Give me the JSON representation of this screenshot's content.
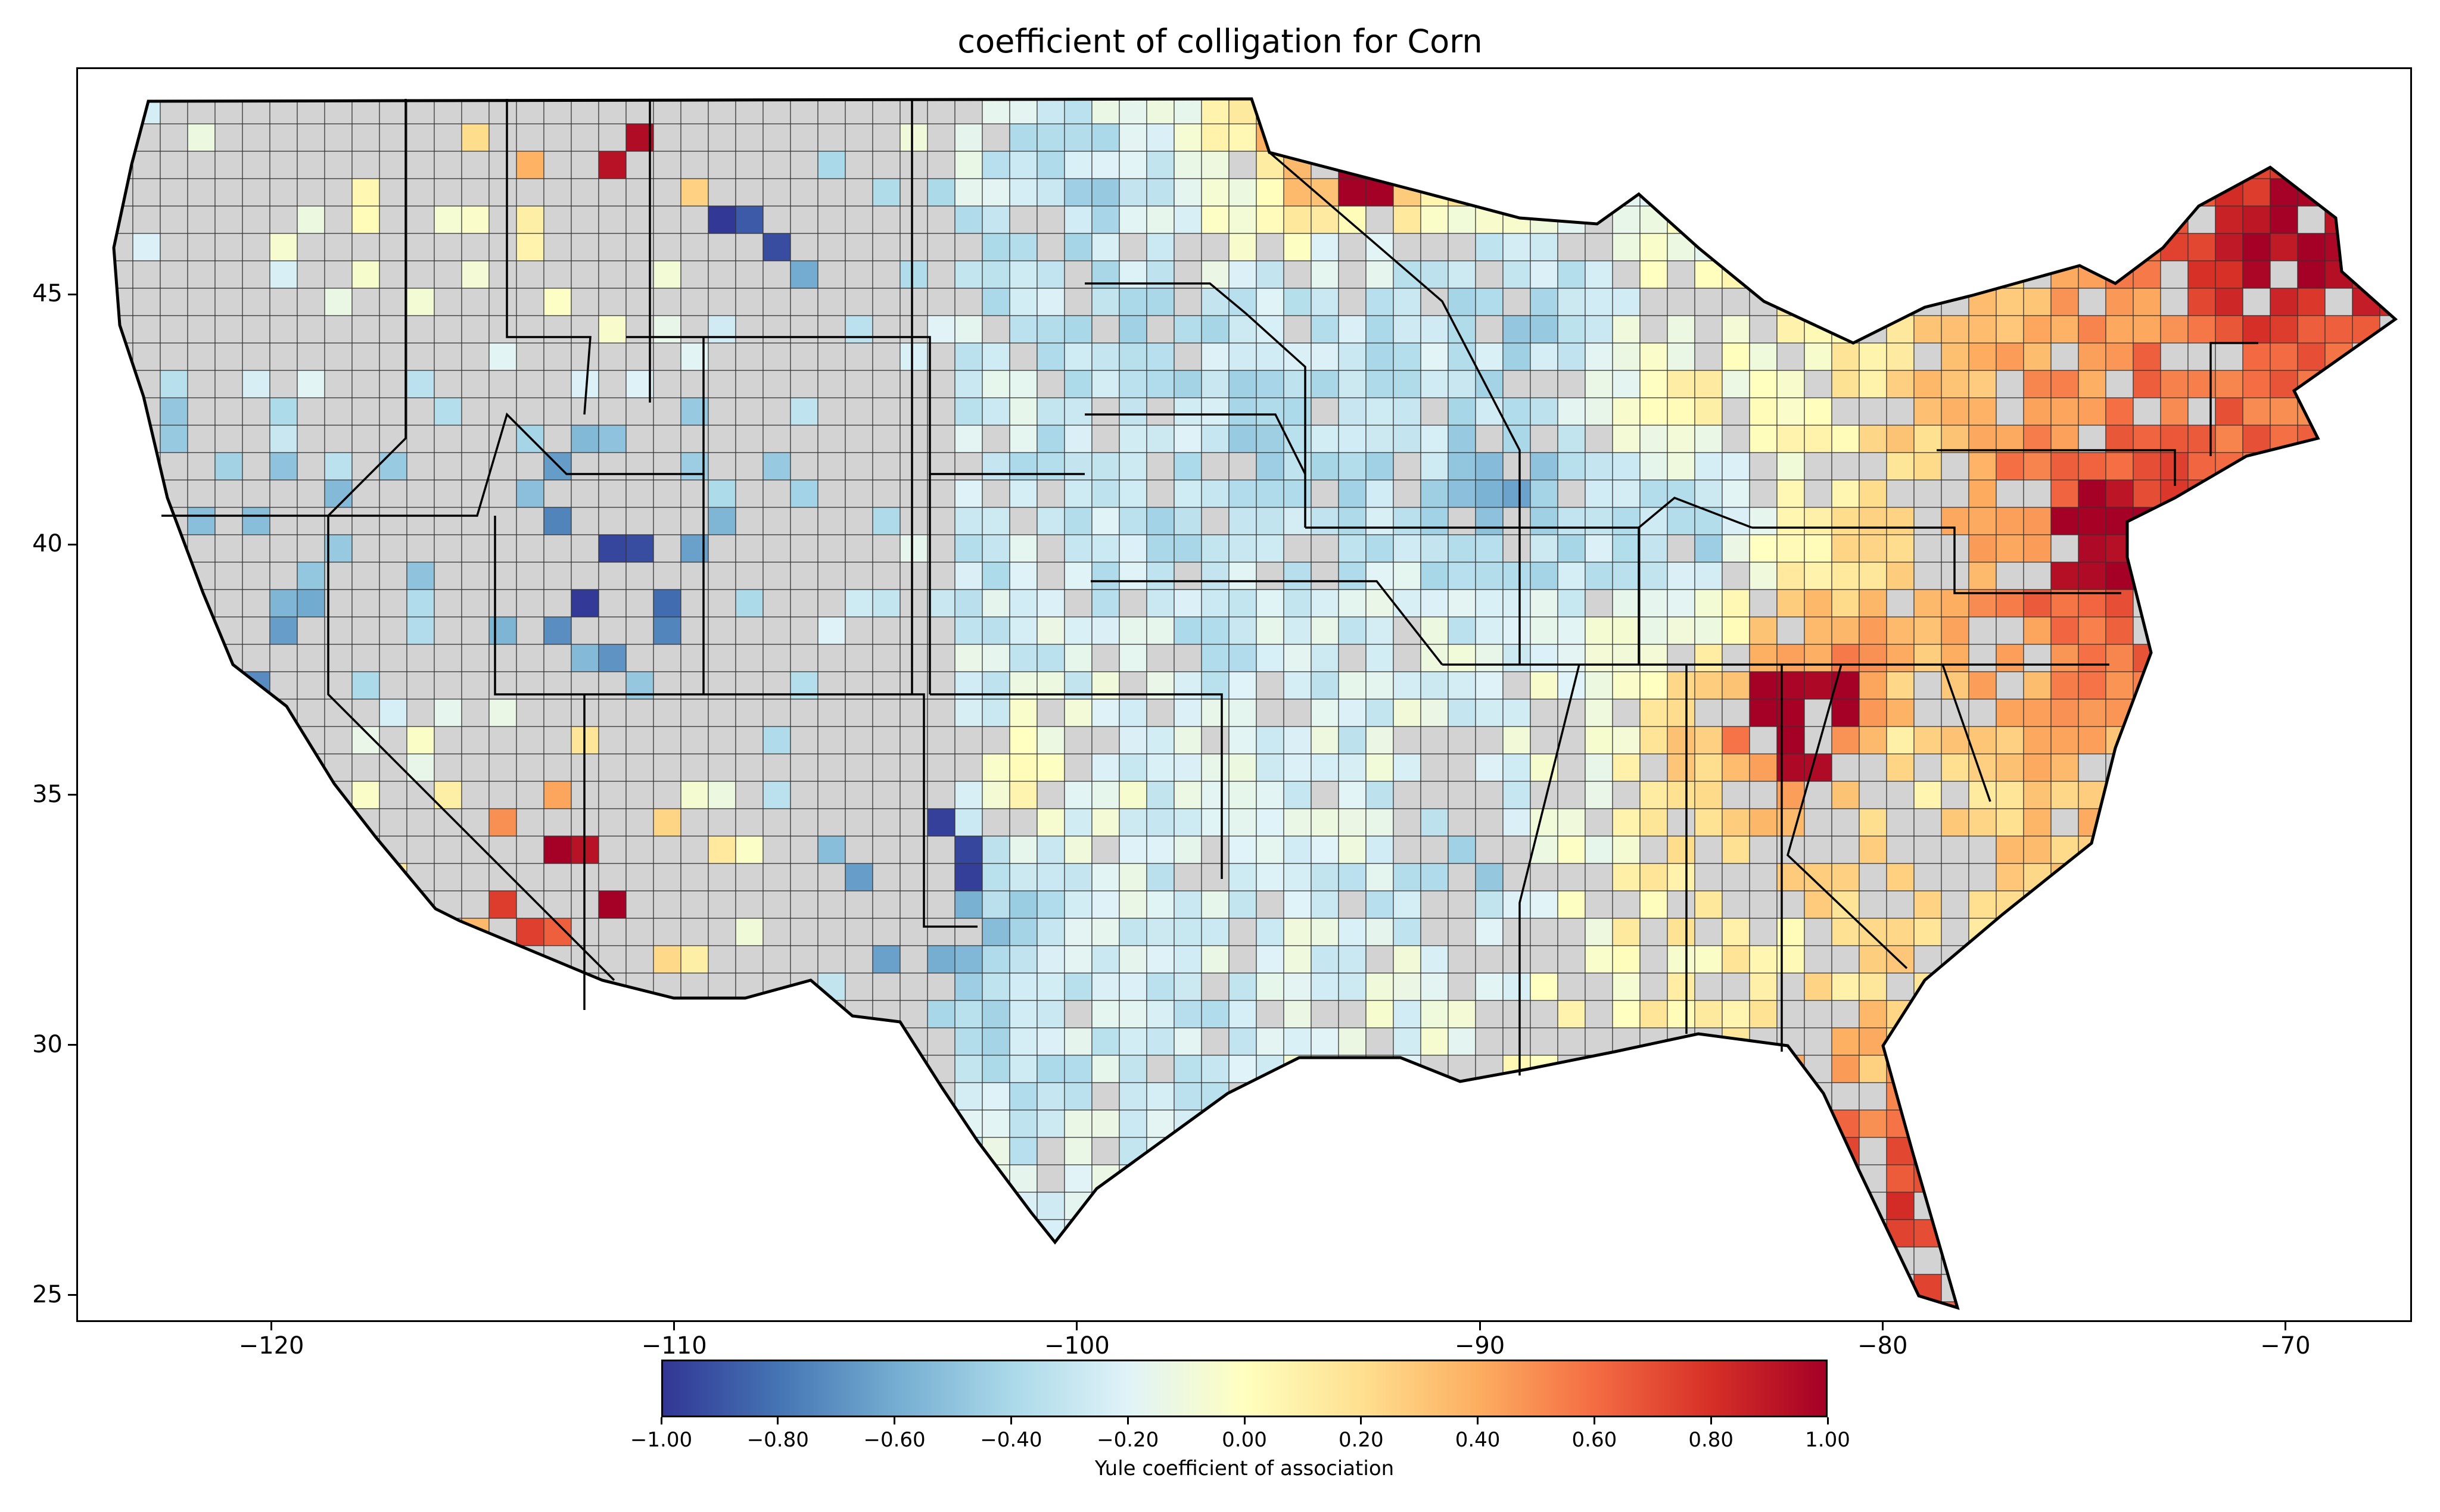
{
  "title": "coefficient of colligation for Corn",
  "chart_data": {
    "type": "choropleth",
    "region": "contiguous United States (counties)",
    "title": "coefficient of colligation for Corn",
    "xlim": [
      -124.8,
      -66.9
    ],
    "ylim": [
      24.5,
      49.5
    ],
    "x_ticks": [
      -120,
      -110,
      -100,
      -90,
      -80,
      -70
    ],
    "y_ticks": [
      25,
      30,
      35,
      40,
      45
    ],
    "x_tick_labels": [
      "−120",
      "−110",
      "−100",
      "−90",
      "−80",
      "−70"
    ],
    "y_tick_labels": [
      "25",
      "30",
      "35",
      "40",
      "45"
    ],
    "no_data_color": "#d3d3d3",
    "colormap": "RdYlBu_r",
    "colorbar": {
      "label": "Yule coefficient of association",
      "range": [
        -1.0,
        1.0
      ],
      "ticks": [
        -1.0,
        -0.8,
        -0.6,
        -0.4,
        -0.2,
        0.0,
        0.2,
        0.4,
        0.6,
        0.8,
        1.0
      ],
      "tick_labels": [
        "−1.00",
        "−0.80",
        "−0.60",
        "−0.40",
        "−0.20",
        "0.00",
        "0.20",
        "0.40",
        "0.60",
        "0.80",
        "1.00"
      ],
      "colors": [
        "#313695",
        "#4575b4",
        "#74add1",
        "#abd9e9",
        "#e0f3f8",
        "#ffffbf",
        "#fee090",
        "#fdae61",
        "#f46d43",
        "#d73027",
        "#a50026"
      ]
    },
    "regions": [
      {
        "lon": -95,
        "lat": 42,
        "value": -0.45
      },
      {
        "lon": -93,
        "lat": 45,
        "value": -0.4
      },
      {
        "lon": -89,
        "lat": 41,
        "value": -0.6
      },
      {
        "lon": -85,
        "lat": 40,
        "value": -0.45
      },
      {
        "lon": -98,
        "lat": 40,
        "value": -0.35
      },
      {
        "lon": -98,
        "lat": 44,
        "value": -0.35
      },
      {
        "lon": -100,
        "lat": 47,
        "value": -0.4
      },
      {
        "lon": -89,
        "lat": 44.5,
        "value": -0.45
      },
      {
        "lon": -90,
        "lat": 33.5,
        "value": -0.4
      },
      {
        "lon": -98,
        "lat": 30.5,
        "value": -0.3
      },
      {
        "lon": -77,
        "lat": 40.3,
        "value": 0.45
      },
      {
        "lon": -80,
        "lat": 35.5,
        "value": 0.05
      },
      {
        "lon": -84,
        "lat": 32,
        "value": 0.05
      },
      {
        "lon": -101.5,
        "lat": 35,
        "value": 0.05
      },
      {
        "lon": -85,
        "lat": 43,
        "value": 0.05
      },
      {
        "lon": -111.5,
        "lat": 39.5,
        "value": -1.0
      },
      {
        "lon": -122,
        "lat": 38,
        "value": -0.9
      },
      {
        "lon": -104,
        "lat": 33.5,
        "value": -0.95
      },
      {
        "lon": -107.5,
        "lat": 46.5,
        "value": -0.95
      },
      {
        "lon": -112.5,
        "lat": 33.5,
        "value": 1.0
      },
      {
        "lon": -110.5,
        "lat": 48,
        "value": 1.0
      },
      {
        "lon": -93,
        "lat": 48,
        "value": 1.0
      },
      {
        "lon": -81.5,
        "lat": 26.5,
        "value": 1.0
      },
      {
        "lon": -74.5,
        "lat": 40,
        "value": 1.0
      },
      {
        "lon": -69.5,
        "lat": 46.3,
        "value": 1.0
      },
      {
        "lon": -108,
        "lat": 48.5,
        "value": 0.15
      },
      {
        "lon": -82,
        "lat": 36.5,
        "value": 1.0
      }
    ]
  }
}
